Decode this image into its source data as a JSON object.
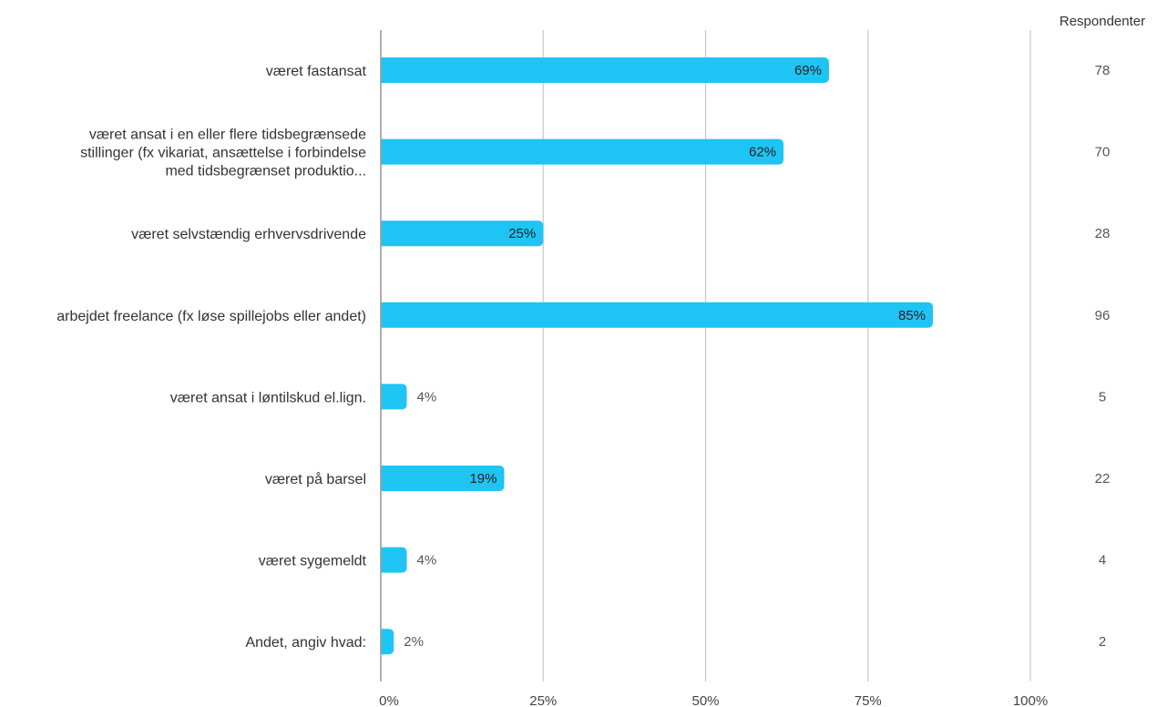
{
  "chart_data": {
    "type": "bar",
    "orientation": "horizontal",
    "categories": [
      [
        "været fastansat"
      ],
      [
        "været ansat i en eller flere tidsbegrænsede",
        "stillinger (fx vikariat, ansættelse i forbindelse",
        "med tidsbegrænset produktio..."
      ],
      [
        "været selvstændig erhvervsdrivende"
      ],
      [
        "arbejdet freelance (fx løse spillejobs eller andet)"
      ],
      [
        "været ansat i løntilskud el.lign."
      ],
      [
        "været på barsel"
      ],
      [
        "været sygemeldt"
      ],
      [
        "Andet, angiv hvad:"
      ]
    ],
    "values": [
      69,
      62,
      25,
      85,
      4,
      19,
      4,
      2
    ],
    "value_labels": [
      "69%",
      "62%",
      "25%",
      "85%",
      "4%",
      "19%",
      "4%",
      "2%"
    ],
    "respondents_header": "Respondenter",
    "respondents": [
      "78",
      "70",
      "28",
      "96",
      "5",
      "22",
      "4",
      "2"
    ],
    "x_ticks": [
      0,
      25,
      50,
      75,
      100
    ],
    "x_tick_labels": [
      "0%",
      "25%",
      "50%",
      "75%",
      "100%"
    ],
    "xlim": [
      0,
      100
    ],
    "grid": true,
    "legend": "none",
    "colors": {
      "bar": "#1ec4f4",
      "grid": "#c8c8c8",
      "axis": "#9a9a9a",
      "label_inside": "#222222",
      "label_outside": "#555555"
    }
  }
}
